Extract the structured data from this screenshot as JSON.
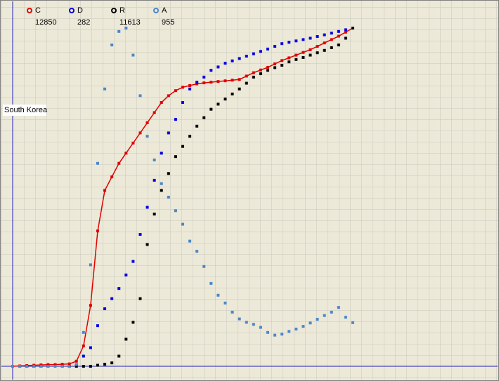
{
  "chart_data": {
    "type": "scatter",
    "label": "South Korea",
    "x": [
      0,
      3,
      6,
      9,
      12,
      15,
      18,
      21,
      24,
      27,
      30,
      33,
      36,
      39,
      42,
      45,
      48,
      51,
      54,
      57,
      60,
      63,
      66,
      69,
      72,
      75,
      78,
      81,
      84,
      87,
      90,
      93,
      96,
      99,
      102,
      105,
      108,
      111,
      114,
      117,
      120,
      123,
      126,
      129,
      132,
      135,
      138,
      141,
      144
    ],
    "xlim": [
      0,
      144
    ],
    "ylim": [
      0,
      100
    ],
    "series": [
      {
        "name": "C",
        "latest": 12850,
        "color": "#e00000",
        "line": true,
        "values": [
          0,
          0.1,
          0.2,
          0.3,
          0.4,
          0.5,
          0.5,
          0.6,
          0.7,
          1.5,
          6,
          18,
          40,
          52,
          56,
          60,
          63,
          66,
          69,
          72,
          75,
          78,
          80,
          81.5,
          82.5,
          83,
          83.5,
          83.8,
          84,
          84.2,
          84.4,
          84.6,
          84.8,
          85.8,
          86.8,
          87.6,
          88.4,
          89.4,
          90.4,
          91.2,
          92,
          92.8,
          93.6,
          94.6,
          95.6,
          96.6,
          97.6,
          98.8,
          100
        ]
      },
      {
        "name": "D",
        "latest": 282,
        "color": "#0000e0",
        "line": false,
        "values": [
          0,
          0,
          0,
          0,
          0,
          0,
          0,
          0,
          0,
          0.5,
          3,
          5.5,
          12,
          17,
          20,
          23,
          27,
          31,
          39,
          47,
          55,
          63,
          69,
          73,
          78,
          82,
          84,
          85.5,
          87.5,
          88.5,
          89.6,
          90.3,
          91,
          91.7,
          92.4,
          93.1,
          93.8,
          94.6,
          95.4,
          95.8,
          96.2,
          96.6,
          97,
          97.5,
          98,
          98.5,
          99,
          99.5,
          100
        ]
      },
      {
        "name": "R",
        "latest": 11613,
        "color": "#000000",
        "line": false,
        "values": [
          0,
          0,
          0,
          0,
          0,
          0,
          0,
          0,
          0,
          0,
          0,
          0,
          0.3,
          0.6,
          1,
          3,
          8,
          13,
          20,
          36,
          45,
          52,
          57,
          62,
          65,
          68,
          71,
          73.5,
          76,
          77.5,
          79,
          80.5,
          82,
          83.7,
          85.5,
          86.5,
          87.5,
          88.3,
          89,
          90,
          90.7,
          91.3,
          92,
          92.7,
          93.4,
          94.2,
          95,
          97,
          100
        ]
      },
      {
        "name": "A",
        "latest": 955,
        "color": "#4a86c8",
        "line": false,
        "values": [
          0,
          0,
          0,
          0,
          0,
          0,
          0,
          0,
          0,
          0.5,
          10,
          30,
          60,
          82,
          95,
          99,
          100,
          92,
          80,
          68,
          61,
          54,
          50,
          46,
          42,
          37,
          34,
          29.5,
          24.5,
          21,
          18.7,
          16,
          14,
          13,
          12.4,
          11.5,
          10,
          9.2,
          9.5,
          10.3,
          11,
          11.8,
          12.8,
          13.9,
          15,
          16,
          17.4,
          14.5,
          12.9
        ]
      }
    ]
  }
}
